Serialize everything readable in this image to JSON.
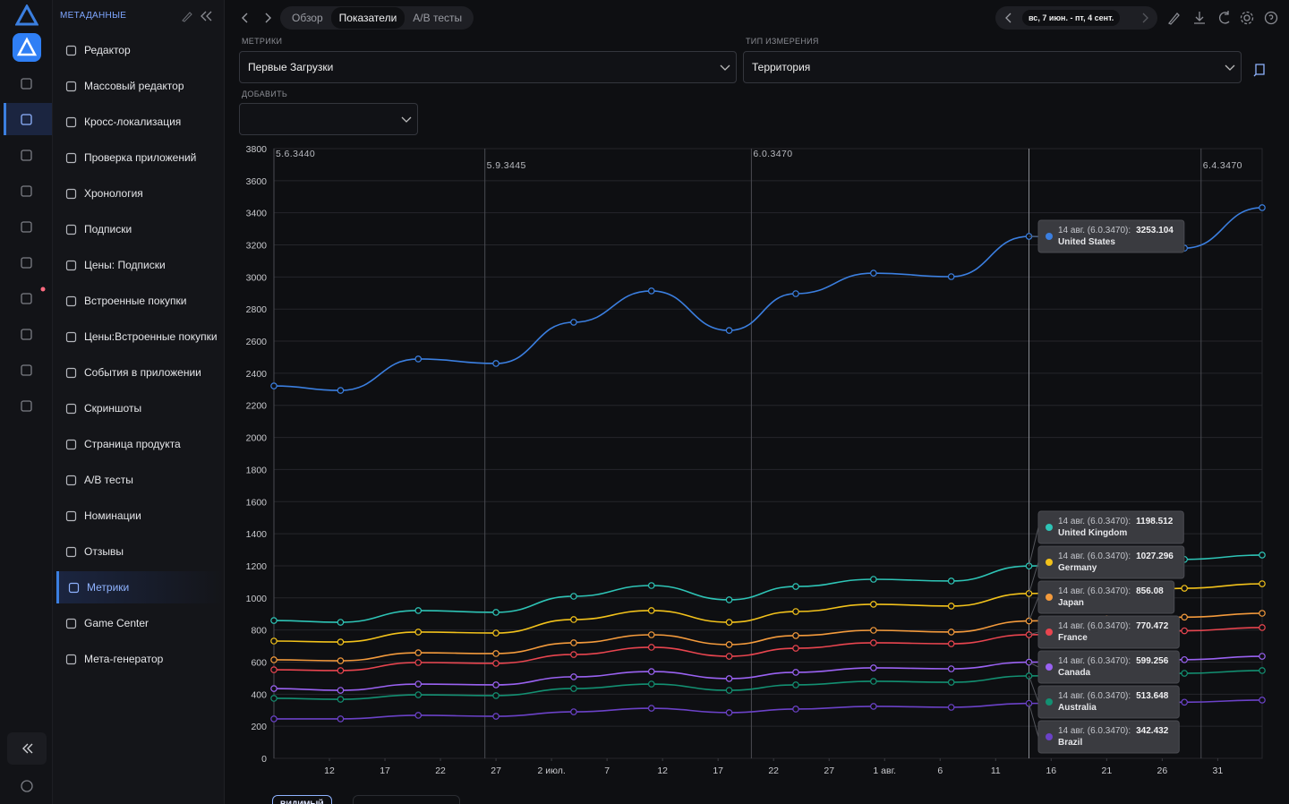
{
  "sidebar": {
    "title": "МЕТАДАННЫЕ",
    "items": [
      {
        "label": "Редактор"
      },
      {
        "label": "Массовый редактор"
      },
      {
        "label": "Кросс-локализация"
      },
      {
        "label": "Проверка приложений"
      },
      {
        "label": "Хронология"
      },
      {
        "label": "Подписки"
      },
      {
        "label": "Цены: Подписки"
      },
      {
        "label": "Встроенные покупки"
      },
      {
        "label": "Цены:Встроенные покупки"
      },
      {
        "label": "События в приложении"
      },
      {
        "label": "Скриншоты"
      },
      {
        "label": "Страница продукта"
      },
      {
        "label": "A/B тесты"
      },
      {
        "label": "Номинации"
      },
      {
        "label": "Отзывы"
      },
      {
        "label": "Метрики",
        "active": true
      },
      {
        "label": "Game Center"
      },
      {
        "label": "Мета-генератор"
      }
    ]
  },
  "tabs": [
    {
      "label": "Обзор"
    },
    {
      "label": "Показатели",
      "active": true
    },
    {
      "label": "A/B тесты"
    }
  ],
  "date_range": "вс, 7 июн. - пт, 4 сент.",
  "filters": {
    "metric_label": "МЕТРИКИ",
    "metric": "Первые Загрузки",
    "dimension_label": "ТИП ИЗМЕРЕНИЯ",
    "dimension": "Территория",
    "add_label": "ДОБАВИТЬ"
  },
  "footer": {
    "visible": "ВИДИМЫЙ"
  },
  "chart_data": {
    "type": "line",
    "x": [
      0,
      6,
      13,
      20,
      27,
      34,
      41,
      47,
      54,
      61,
      68,
      75,
      82,
      89
    ],
    "xlim": [
      0,
      89
    ],
    "xticks": [
      {
        "value": 5,
        "label": "12"
      },
      {
        "value": 10,
        "label": "17"
      },
      {
        "value": 15,
        "label": "22"
      },
      {
        "value": 20,
        "label": "27"
      },
      {
        "value": 25,
        "label": "2 июл."
      },
      {
        "value": 30,
        "label": "7"
      },
      {
        "value": 35,
        "label": "12"
      },
      {
        "value": 40,
        "label": "17"
      },
      {
        "value": 45,
        "label": "22"
      },
      {
        "value": 50,
        "label": "27"
      },
      {
        "value": 55,
        "label": "1 авг."
      },
      {
        "value": 60,
        "label": "6"
      },
      {
        "value": 65,
        "label": "11"
      },
      {
        "value": 70,
        "label": "16"
      },
      {
        "value": 75,
        "label": "21"
      },
      {
        "value": 80,
        "label": "26"
      },
      {
        "value": 85,
        "label": "31"
      }
    ],
    "ylim": [
      0,
      3800
    ],
    "yticks": [
      0,
      200,
      400,
      600,
      800,
      1000,
      1200,
      1400,
      1600,
      1800,
      2000,
      2200,
      2400,
      2600,
      2800,
      3000,
      3200,
      3400,
      3600,
      3800
    ],
    "grid": true,
    "annotations": [
      {
        "x": 0,
        "label": "5.6.3440"
      },
      {
        "x": 19,
        "label": "5.9.3445"
      },
      {
        "x": 43,
        "label": "6.0.3470"
      },
      {
        "x": 83.5,
        "label": "6.4.3470"
      }
    ],
    "hover": {
      "x": 68,
      "label": "14 авг. (6.0.3470):"
    },
    "series": [
      {
        "name": "United States",
        "color": "#3b7fe0",
        "values": [
          2321,
          2293,
          2489,
          2461,
          2718,
          2913,
          2667,
          2896,
          3024,
          3002,
          3253.104,
          3220,
          3180,
          3432
        ]
      },
      {
        "name": "United Kingdom",
        "color": "#2ec4b6",
        "values": [
          859,
          848,
          921,
          910,
          1010,
          1077,
          988,
          1071,
          1116,
          1105,
          1198.512,
          1215,
          1240,
          1267
        ]
      },
      {
        "name": "Germany",
        "color": "#f2c21b",
        "values": [
          731,
          725,
          787,
          781,
          865,
          921,
          848,
          915,
          960,
          949,
          1027.296,
          1040,
          1060,
          1088
        ]
      },
      {
        "name": "Japan",
        "color": "#f39a3c",
        "values": [
          614,
          608,
          658,
          653,
          720,
          770,
          709,
          765,
          798,
          787,
          856.08,
          870,
          880,
          904
        ]
      },
      {
        "name": "France",
        "color": "#e8454f",
        "values": [
          552,
          547,
          597,
          592,
          647,
          692,
          636,
          686,
          720,
          714,
          770.472,
          780,
          795,
          815
        ]
      },
      {
        "name": "Canada",
        "color": "#9a62f2",
        "values": [
          435,
          424,
          463,
          458,
          508,
          541,
          497,
          536,
          564,
          558,
          599.256,
          605,
          615,
          636
        ]
      },
      {
        "name": "Australia",
        "color": "#139072",
        "values": [
          374,
          368,
          396,
          391,
          435,
          463,
          424,
          458,
          480,
          474,
          513.648,
          520,
          530,
          547
        ]
      },
      {
        "name": "Brazil",
        "color": "#6b42c8",
        "values": [
          246,
          246,
          268,
          262,
          290,
          312,
          285,
          307,
          324,
          318,
          342.432,
          345,
          350,
          363
        ]
      }
    ]
  }
}
